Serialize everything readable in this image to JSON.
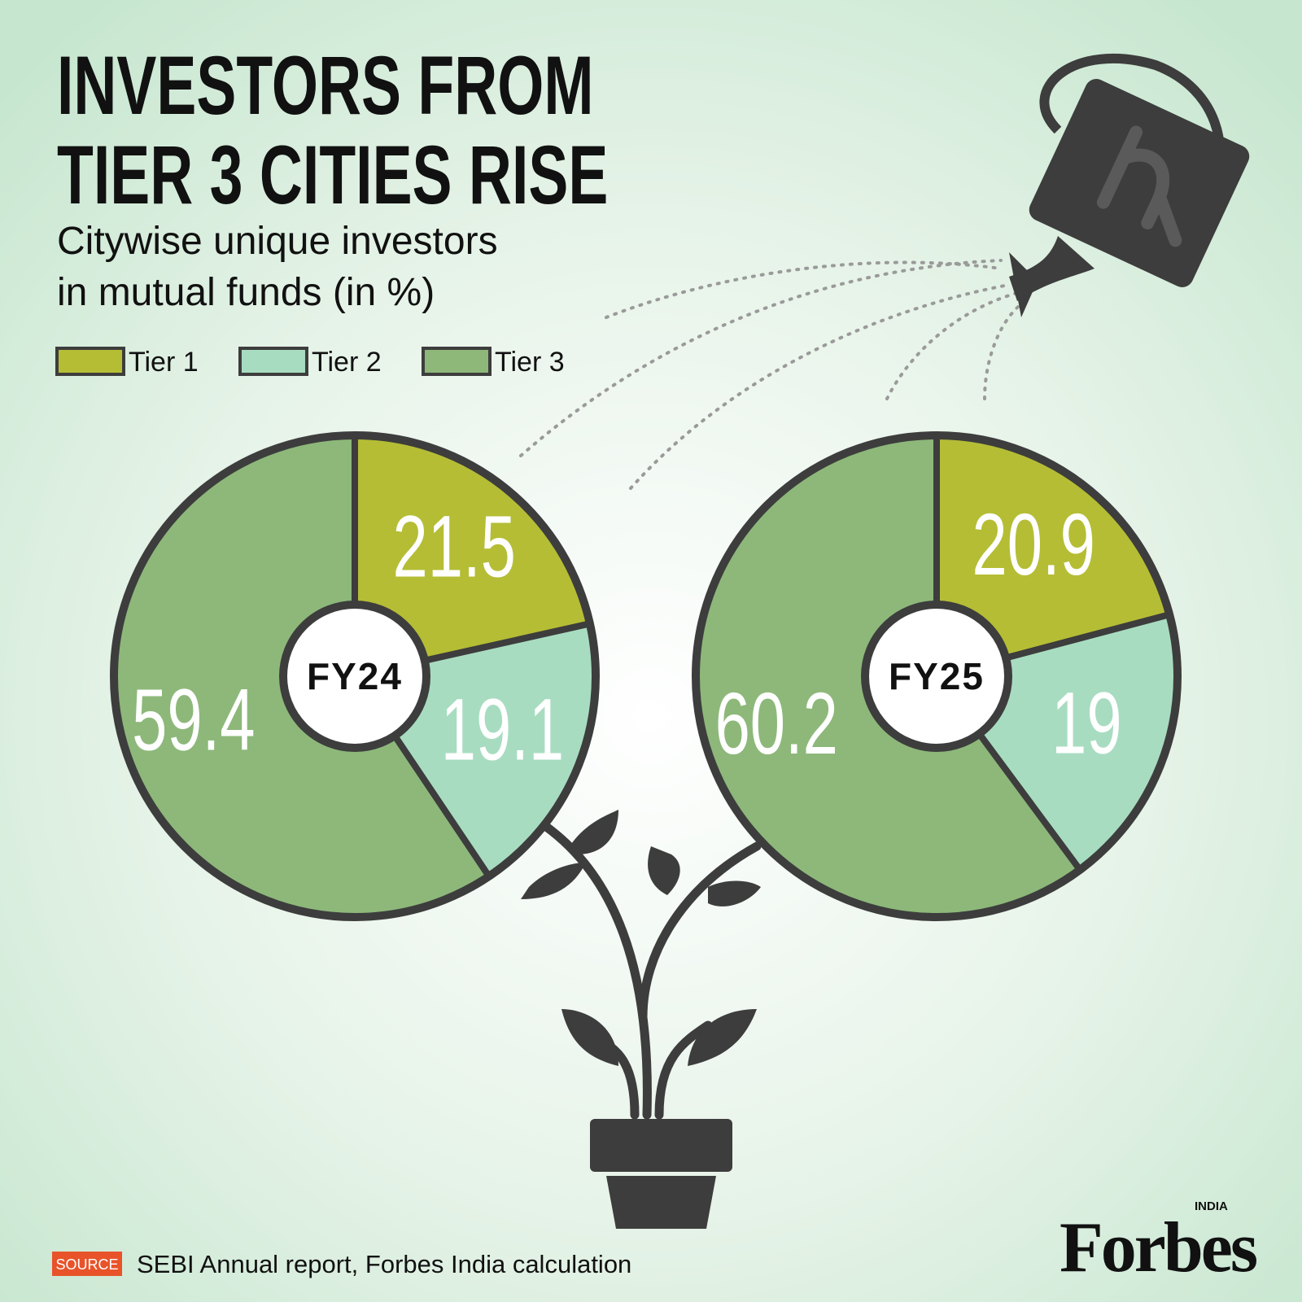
{
  "header": {
    "title": [
      "INVESTORS FROM",
      "TIER 3 CITIES RISE"
    ],
    "subtitle": [
      "Citywise unique investors",
      "in mutual funds (in %)"
    ]
  },
  "chart_data": [
    {
      "type": "pie",
      "title": "FY24",
      "categories": [
        "Tier 1",
        "Tier 2",
        "Tier 3"
      ],
      "values": [
        21.5,
        19.1,
        59.4
      ],
      "colors": [
        "#b5bd35",
        "#a8dcc0",
        "#8db87a"
      ]
    },
    {
      "type": "pie",
      "title": "FY25",
      "categories": [
        "Tier 1",
        "Tier 2",
        "Tier 3"
      ],
      "values": [
        20.9,
        19,
        60.2
      ],
      "colors": [
        "#b5bd35",
        "#a8dcc0",
        "#8db87a"
      ]
    }
  ],
  "source": {
    "label": "SOURCE",
    "text": "SEBI Annual report, Forbes India calculation"
  },
  "logo": {
    "brand": "Forbes",
    "region": "INDIA"
  }
}
